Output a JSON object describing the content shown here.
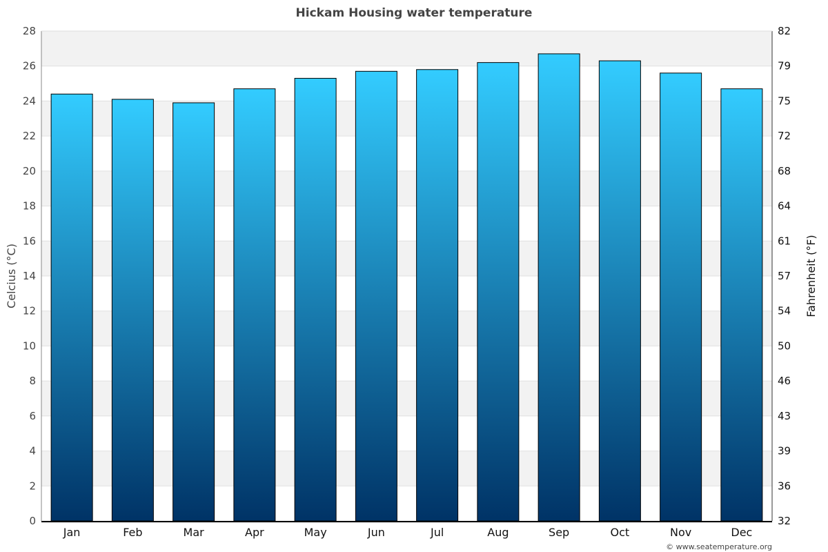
{
  "chart_data": {
    "type": "bar",
    "title": "Hickam Housing water temperature",
    "ylabel": "Celcius (°C)",
    "ylabel_right": "Fahrenheit (°F)",
    "categories": [
      "Jan",
      "Feb",
      "Mar",
      "Apr",
      "May",
      "Jun",
      "Jul",
      "Aug",
      "Sep",
      "Oct",
      "Nov",
      "Dec"
    ],
    "values": [
      24.4,
      24.1,
      23.9,
      24.7,
      25.3,
      25.7,
      25.8,
      26.2,
      26.7,
      26.3,
      25.6,
      24.7
    ],
    "ylim": [
      0,
      28
    ],
    "yticks": [
      0,
      2,
      4,
      6,
      8,
      10,
      12,
      14,
      16,
      18,
      20,
      22,
      24,
      26,
      28
    ],
    "yticks_right": [
      32,
      36,
      39,
      43,
      46,
      50,
      54,
      57,
      61,
      64,
      68,
      72,
      75,
      79,
      82
    ],
    "grid": true,
    "colors": {
      "bar_top": "#33ccff",
      "bar_bottom": "#003366",
      "band": "#f2f2f2"
    }
  },
  "credit": "© www.seatemperature.org"
}
